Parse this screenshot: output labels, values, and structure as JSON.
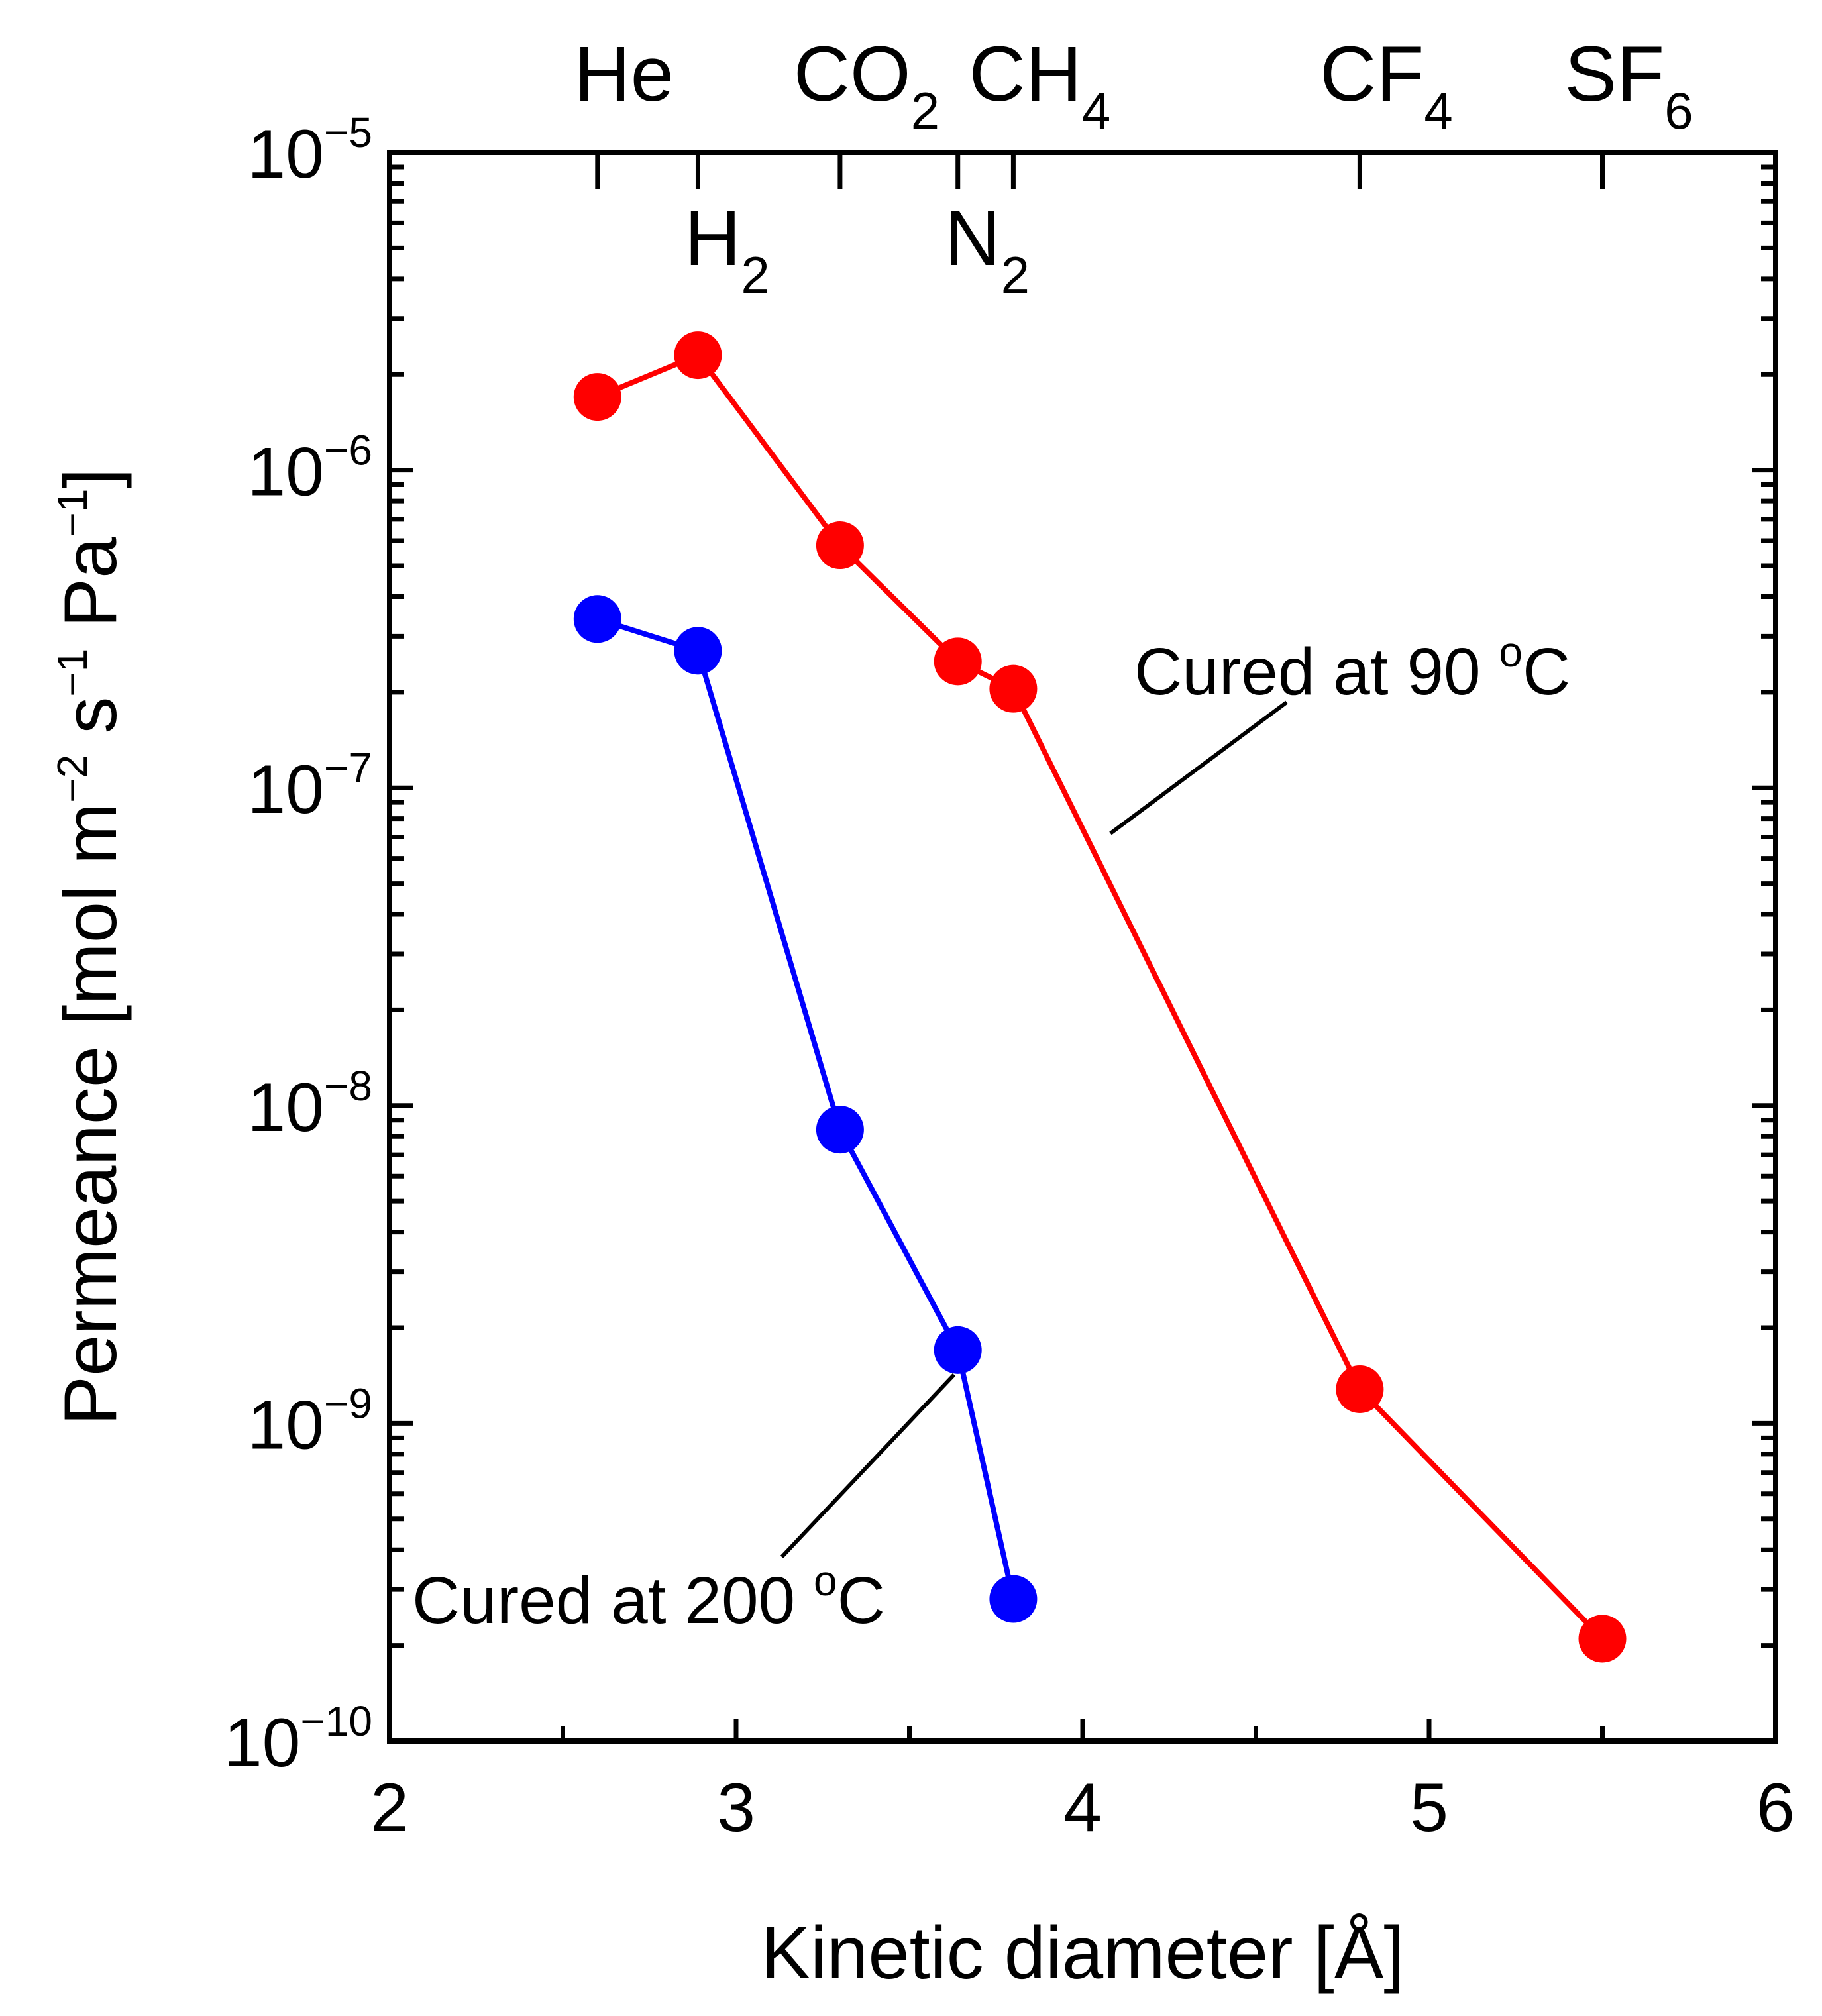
{
  "chart_data": {
    "type": "line",
    "xlabel": "Kinetic diameter [Å]",
    "ylabel": {
      "text": "Permeance [mol m",
      "parts": [
        "Permeance [mol m",
        "−2",
        " s",
        "−1",
        " Pa",
        "−1",
        "]"
      ]
    },
    "xlim": [
      2,
      6
    ],
    "ylim": [
      1e-10,
      1e-05
    ],
    "yscale": "log",
    "x_ticks": [
      2,
      3,
      4,
      5,
      6
    ],
    "x_tick_labels": [
      "2",
      "3",
      "4",
      "5",
      "6"
    ],
    "y_ticks": [
      {
        "value": 1e-05,
        "base": "10",
        "exp": "−5"
      },
      {
        "value": 1e-06,
        "base": "10",
        "exp": "−6"
      },
      {
        "value": 1e-07,
        "base": "10",
        "exp": "−7"
      },
      {
        "value": 1e-08,
        "base": "10",
        "exp": "−8"
      },
      {
        "value": 1e-09,
        "base": "10",
        "exp": "−9"
      },
      {
        "value": 1e-10,
        "base": "10",
        "exp": "−10"
      }
    ],
    "gases": [
      {
        "name": "He",
        "base": "He",
        "sub": "",
        "diameter": 2.6,
        "row": "top"
      },
      {
        "name": "H2",
        "base": "H",
        "sub": "2",
        "diameter": 2.89,
        "row": "bottom"
      },
      {
        "name": "CO2",
        "base": "CO",
        "sub": "2",
        "diameter": 3.3,
        "row": "top"
      },
      {
        "name": "N2",
        "base": "N",
        "sub": "2",
        "diameter": 3.64,
        "row": "bottom"
      },
      {
        "name": "CH4",
        "base": "CH",
        "sub": "4",
        "diameter": 3.8,
        "row": "top"
      },
      {
        "name": "CF4",
        "base": "CF",
        "sub": "4",
        "diameter": 4.8,
        "row": "top"
      },
      {
        "name": "SF6",
        "base": "SF",
        "sub": "6",
        "diameter": 5.5,
        "row": "top"
      }
    ],
    "series": [
      {
        "name": "Cured at 90 °C",
        "label_text": "Cured at 90 ",
        "label_sup": "o",
        "label_unit": "C",
        "color": "#ff0000",
        "x": [
          2.6,
          2.89,
          3.3,
          3.64,
          3.8,
          4.8,
          5.5
        ],
        "y": [
          1.7e-06,
          2.3e-06,
          5.8e-07,
          2.5e-07,
          2.05e-07,
          1.28e-09,
          2.1e-10
        ]
      },
      {
        "name": "Cured at 200 °C",
        "label_text": "Cured at 200 ",
        "label_sup": "o",
        "label_unit": "C",
        "color": "#0000ff",
        "x": [
          2.6,
          2.89,
          3.3,
          3.64,
          3.8
        ],
        "y": [
          3.4e-07,
          2.7e-07,
          8.4e-09,
          1.7e-09,
          2.8e-10
        ]
      }
    ]
  }
}
